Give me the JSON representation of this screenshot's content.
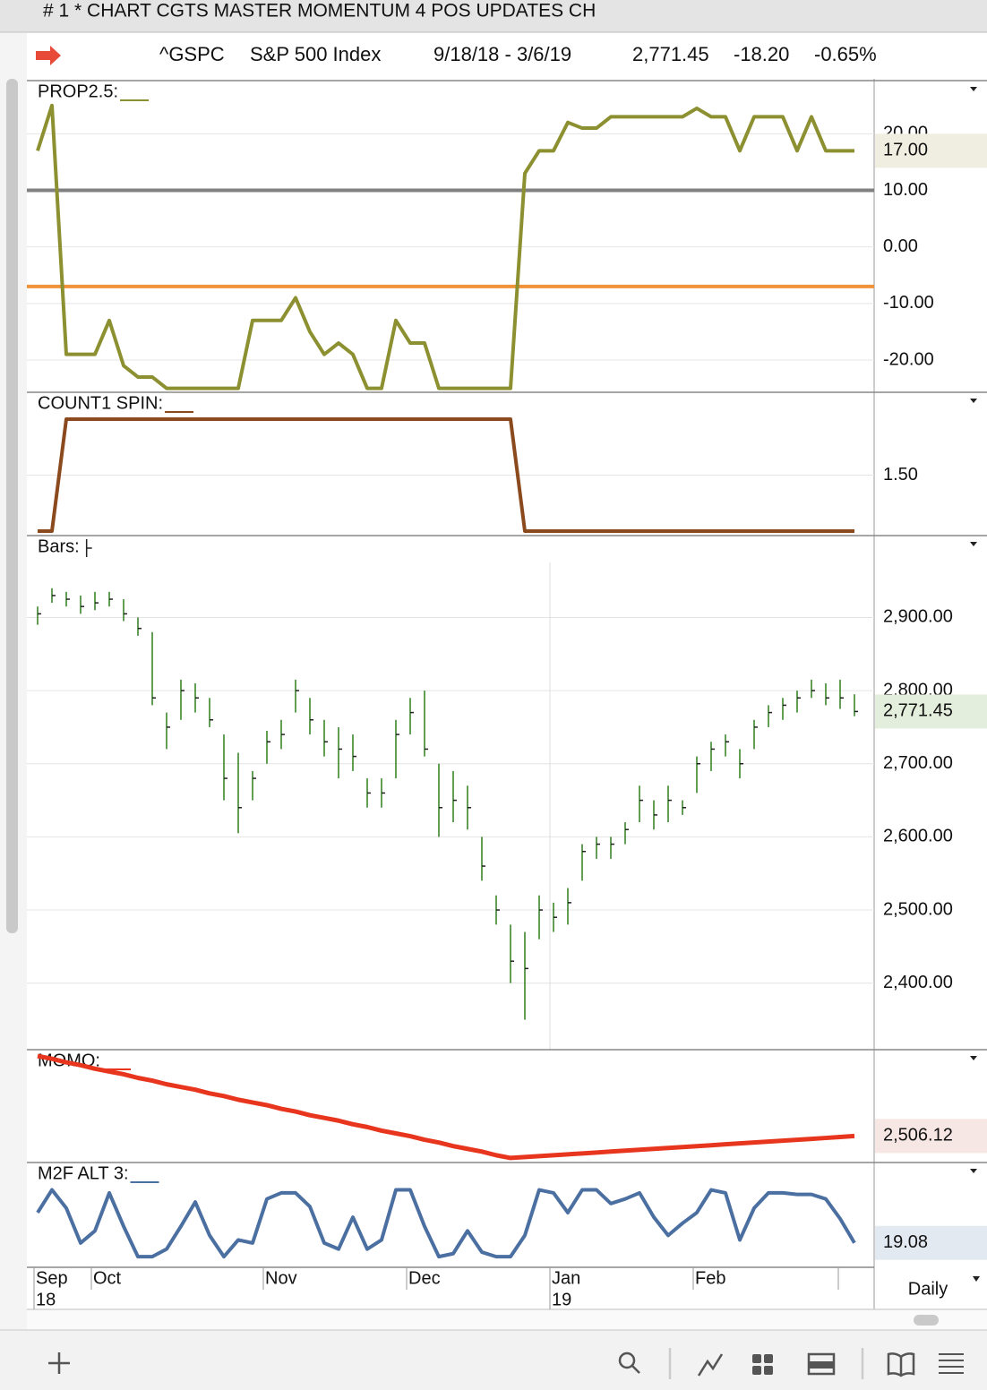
{
  "window": {
    "title": "# 1 * CHART CGTS MASTER MOMENTUM 4 POS UPDATES CH"
  },
  "quote": {
    "symbol": "^GSPC",
    "name": "S&P 500 Index",
    "range": "9/18/18 - 3/6/19",
    "last": "2,771.45",
    "change": "-18.20",
    "change_pct": "-0.65%"
  },
  "interval": "Daily",
  "chart_data": [
    {
      "type": "line",
      "title": "PROP2.5:",
      "color": "#8c9030",
      "values": [
        17,
        25,
        -19,
        -19,
        -19,
        -13,
        -21,
        -23,
        -23,
        -25,
        -25,
        -25,
        -25,
        -25,
        -25,
        -13,
        -13,
        -13,
        -9,
        -15,
        -19,
        -17,
        -19,
        -25,
        -25,
        -13,
        -17,
        -17,
        -25,
        -25,
        -25,
        -25,
        -25,
        -25,
        13,
        17,
        17,
        22,
        21,
        21,
        23,
        23,
        23,
        23,
        23,
        23,
        24.5,
        23,
        23,
        17,
        23,
        23,
        23,
        17,
        23,
        17,
        17,
        17
      ],
      "last_label": "17.00",
      "hlines": [
        {
          "value": 10,
          "color": "#808080"
        },
        {
          "value": -7,
          "color": "#f0923a"
        }
      ],
      "ylim": [
        -25.7,
        29.4
      ],
      "yticks": [
        {
          "value": -20,
          "label": "-20.00"
        },
        {
          "value": -10,
          "label": "-10.00"
        },
        {
          "value": 0,
          "label": "0.00"
        },
        {
          "value": 10,
          "label": "10.00"
        },
        {
          "value": 20,
          "label": "20.00"
        }
      ]
    },
    {
      "type": "line",
      "title": "COUNT1 SPIN:",
      "color": "#8b4a1e",
      "values": [
        1,
        1,
        2,
        2,
        2,
        2,
        2,
        2,
        2,
        2,
        2,
        2,
        2,
        2,
        2,
        2,
        2,
        2,
        2,
        2,
        2,
        2,
        2,
        2,
        2,
        2,
        2,
        2,
        2,
        2,
        2,
        2,
        2,
        2,
        1,
        1,
        1,
        1,
        1,
        1,
        1,
        1,
        1,
        1,
        1,
        1,
        1,
        1,
        1,
        1,
        1,
        1,
        1,
        1,
        1,
        1,
        1,
        1
      ],
      "ylim": [
        0.96,
        2.24
      ],
      "yticks": [
        {
          "value": 1.5,
          "label": "1.50"
        }
      ]
    },
    {
      "type": "ohlc",
      "title": "Bars:",
      "color": "#2e7d1e",
      "high": [
        2915,
        2940,
        2935,
        2930,
        2935,
        2935,
        2925,
        2900,
        2880,
        2770,
        2815,
        2810,
        2790,
        2740,
        2715,
        2690,
        2745,
        2760,
        2815,
        2790,
        2760,
        2750,
        2740,
        2680,
        2680,
        2760,
        2790,
        2800,
        2700,
        2690,
        2670,
        2600,
        2520,
        2480,
        2470,
        2520,
        2510,
        2530,
        2590,
        2600,
        2600,
        2620,
        2670,
        2650,
        2670,
        2650,
        2710,
        2730,
        2740,
        2720,
        2760,
        2780,
        2790,
        2800,
        2815,
        2810,
        2815,
        2795
      ],
      "low": [
        2890,
        2920,
        2915,
        2905,
        2910,
        2915,
        2895,
        2875,
        2780,
        2720,
        2760,
        2770,
        2750,
        2650,
        2605,
        2650,
        2700,
        2720,
        2770,
        2740,
        2710,
        2680,
        2690,
        2640,
        2640,
        2680,
        2740,
        2710,
        2600,
        2620,
        2610,
        2540,
        2480,
        2400,
        2350,
        2460,
        2470,
        2480,
        2540,
        2570,
        2570,
        2590,
        2620,
        2610,
        2620,
        2630,
        2660,
        2690,
        2710,
        2680,
        2720,
        2750,
        2760,
        2770,
        2790,
        2780,
        2775,
        2765
      ],
      "close": [
        2905,
        2930,
        2925,
        2915,
        2920,
        2925,
        2905,
        2885,
        2790,
        2750,
        2800,
        2790,
        2760,
        2680,
        2640,
        2680,
        2730,
        2740,
        2800,
        2760,
        2730,
        2720,
        2710,
        2660,
        2660,
        2740,
        2770,
        2720,
        2640,
        2650,
        2640,
        2560,
        2500,
        2430,
        2420,
        2500,
        2490,
        2510,
        2580,
        2590,
        2590,
        2610,
        2650,
        2630,
        2650,
        2640,
        2700,
        2720,
        2730,
        2700,
        2750,
        2770,
        2780,
        2790,
        2800,
        2790,
        2790,
        2771.45
      ],
      "last_label": "2,771.45",
      "ylim": [
        2309,
        3012
      ],
      "yticks": [
        {
          "value": 2400,
          "label": "2,400.00"
        },
        {
          "value": 2500,
          "label": "2,500.00"
        },
        {
          "value": 2600,
          "label": "2,600.00"
        },
        {
          "value": 2700,
          "label": "2,700.00"
        },
        {
          "value": 2800,
          "label": "2,800.00"
        },
        {
          "value": 2900,
          "label": "2,900.00"
        }
      ]
    },
    {
      "type": "line",
      "title": "MOMO:",
      "color": "#e8351e",
      "values": [
        2594,
        2591,
        2587,
        2584,
        2580,
        2577,
        2574,
        2570,
        2567,
        2563,
        2560,
        2557,
        2553,
        2550,
        2546,
        2543,
        2540,
        2536,
        2533,
        2529,
        2526,
        2523,
        2519,
        2516,
        2512,
        2509,
        2506,
        2502,
        2499,
        2495,
        2492,
        2489,
        2485,
        2482,
        2483,
        2484,
        2485,
        2486,
        2487,
        2488,
        2489,
        2490,
        2491,
        2492,
        2493,
        2494,
        2495,
        2496,
        2497,
        2498,
        2499,
        2500,
        2501,
        2502,
        2503,
        2504,
        2505,
        2506.12
      ],
      "last_label": "2,506.12",
      "ylim": [
        2477,
        2601
      ],
      "yticks": []
    },
    {
      "type": "line",
      "title": "M2F ALT 3:",
      "color": "#4a6fa0",
      "values": [
        39,
        54,
        42,
        19,
        27,
        52,
        30,
        10,
        10,
        15,
        30,
        46,
        24,
        10,
        21,
        19,
        48,
        52,
        52,
        43,
        19,
        15,
        36,
        15,
        21,
        54,
        54,
        30,
        10,
        12,
        27,
        13,
        10,
        10,
        24,
        54,
        52,
        39,
        54,
        54,
        45,
        48,
        52,
        36,
        24,
        32,
        39,
        54,
        52,
        21,
        42,
        52,
        52,
        51,
        51,
        48,
        35,
        19.08
      ],
      "last_label": "19.08",
      "ylim": [
        3,
        72
      ],
      "yticks": [],
      "categories": [
        "Sep",
        null,
        null,
        null,
        "Oct",
        null,
        null,
        null,
        null,
        null,
        null,
        null,
        null,
        null,
        null,
        null,
        "Nov",
        null,
        null,
        null,
        null,
        null,
        null,
        null,
        null,
        null,
        "Dec",
        null,
        null,
        null,
        null,
        null,
        null,
        null,
        null,
        null,
        "Jan",
        null,
        null,
        null,
        null,
        null,
        null,
        null,
        null,
        null,
        "Feb",
        null,
        null,
        null,
        null,
        null,
        null,
        null,
        null,
        null,
        null,
        null
      ],
      "year_labels": [
        "18",
        null,
        null,
        null,
        null,
        null,
        null,
        null,
        null,
        null,
        null,
        null,
        null,
        null,
        null,
        null,
        null,
        null,
        null,
        null,
        null,
        null,
        null,
        null,
        null,
        null,
        null,
        null,
        null,
        null,
        null,
        null,
        null,
        null,
        null,
        null,
        "19",
        null,
        null,
        null,
        null,
        null,
        null,
        null,
        null,
        null,
        null,
        null,
        null,
        null,
        null,
        null,
        null,
        null,
        null,
        null,
        null,
        null
      ]
    }
  ]
}
